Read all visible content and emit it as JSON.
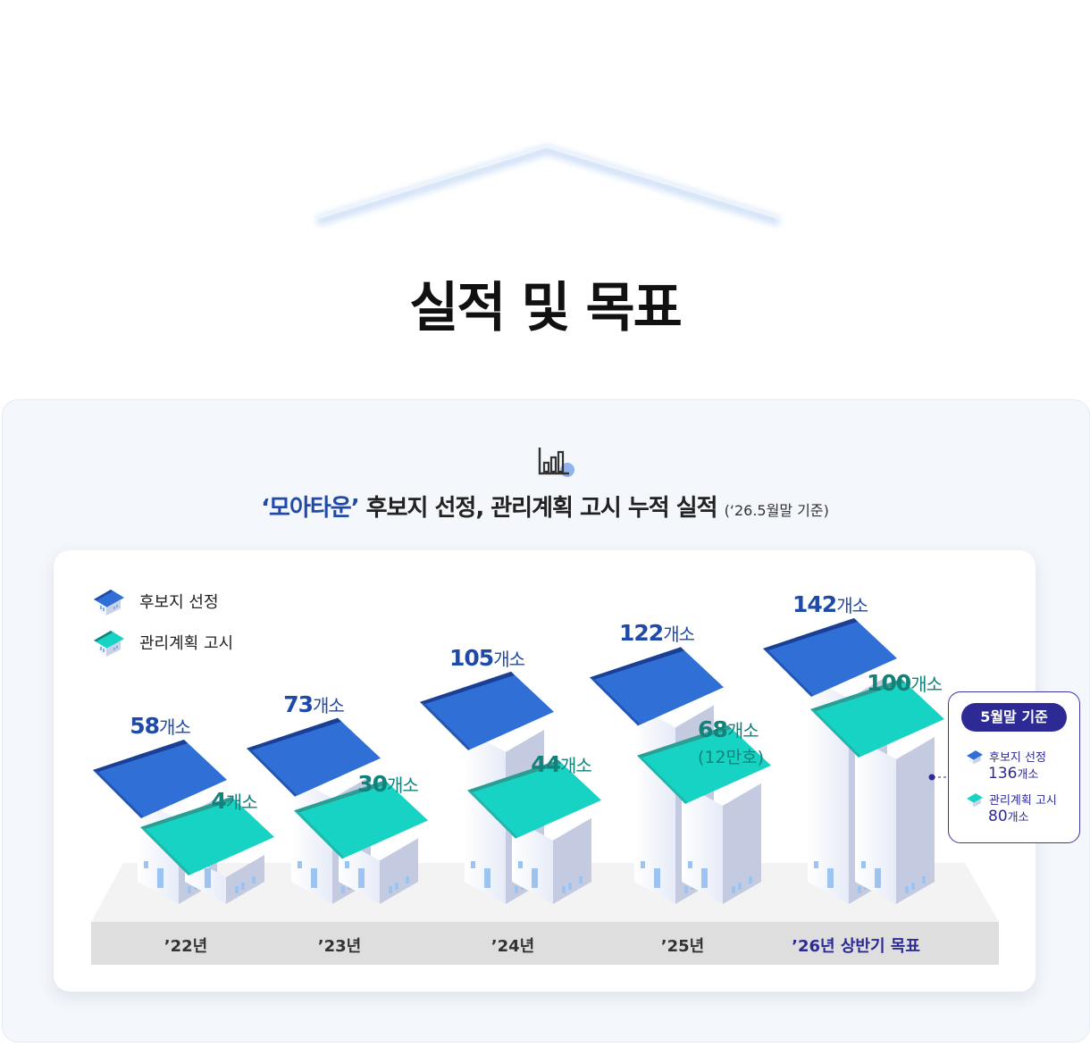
{
  "title": "실적 및 목표",
  "subtitle": {
    "brand": "‘모아타운’",
    "text": " 후보지 선정, 관리계획 고시 누적 실적 ",
    "note": "(‘26.5월말 기준)"
  },
  "legend": {
    "candidate": "후보지 선정",
    "plan": "관리계획 고시"
  },
  "icon_names": {
    "header": "bar-chart-icon",
    "legend": "house-icon"
  },
  "colors": {
    "candidate": "#2f6fd6",
    "plan": "#17d3c4",
    "brand": "#1f4aa8",
    "target": "#2d2a96"
  },
  "chart_data": {
    "type": "bar",
    "categories": [
      "’22년",
      "’23년",
      "’24년",
      "’25년",
      "’26년 상반기 목표"
    ],
    "series": [
      {
        "name": "후보지 선정",
        "values": [
          58,
          73,
          105,
          122,
          142
        ]
      },
      {
        "name": "관리계획 고시",
        "values": [
          4,
          30,
          44,
          68,
          100
        ]
      }
    ],
    "unit": "개소",
    "annotations": [
      {
        "category": "’25년",
        "series": "관리계획 고시",
        "text": "(12만호)"
      }
    ]
  },
  "status": {
    "title": "5월말 기준",
    "items": [
      {
        "label": "후보지 선정",
        "value": "136",
        "unit": "개소"
      },
      {
        "label": "관리계획 고시",
        "value": "80",
        "unit": "개소"
      }
    ]
  }
}
